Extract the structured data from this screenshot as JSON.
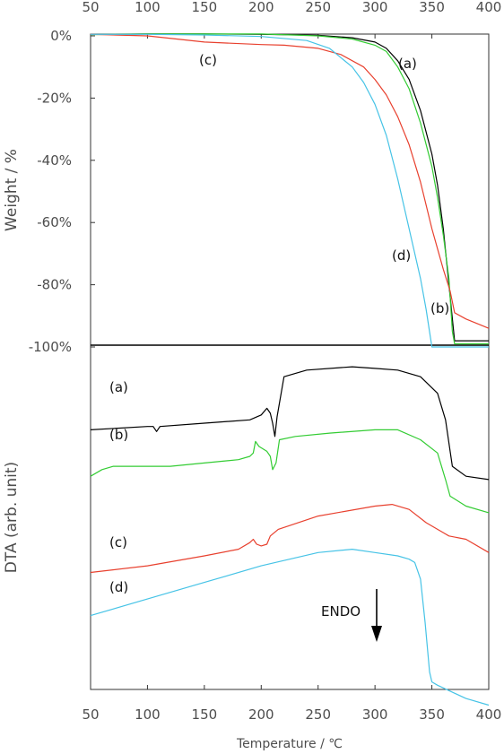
{
  "chart_data": [
    {
      "type": "line",
      "ylabel": "Weight / %",
      "x_ticks": [
        "50",
        "100",
        "150",
        "200",
        "250",
        "300",
        "350",
        "400"
      ],
      "y_ticks": [
        "0%",
        "-20%",
        "-40%",
        "-60%",
        "-80%",
        "-100%"
      ],
      "xlim": [
        50,
        400
      ],
      "ylim": [
        -100,
        2
      ],
      "series": [
        {
          "name": "(a)",
          "color": "#000000",
          "points": [
            [
              50,
              0.5
            ],
            [
              100,
              0.6
            ],
            [
              150,
              0.6
            ],
            [
              200,
              0.5
            ],
            [
              250,
              0.2
            ],
            [
              280,
              -0.6
            ],
            [
              300,
              -2
            ],
            [
              310,
              -4
            ],
            [
              320,
              -8
            ],
            [
              330,
              -14
            ],
            [
              340,
              -24
            ],
            [
              350,
              -38
            ],
            [
              355,
              -48
            ],
            [
              360,
              -62
            ],
            [
              365,
              -80
            ],
            [
              370,
              -98
            ],
            [
              400,
              -98
            ]
          ]
        },
        {
          "name": "(b)",
          "color": "#33cc33",
          "points": [
            [
              50,
              0.4
            ],
            [
              100,
              0.6
            ],
            [
              150,
              0.6
            ],
            [
              200,
              0.6
            ],
            [
              250,
              0
            ],
            [
              280,
              -1
            ],
            [
              300,
              -3
            ],
            [
              310,
              -5
            ],
            [
              320,
              -10
            ],
            [
              330,
              -17
            ],
            [
              340,
              -28
            ],
            [
              350,
              -42
            ],
            [
              355,
              -52
            ],
            [
              360,
              -64
            ],
            [
              365,
              -78
            ],
            [
              368,
              -95
            ],
            [
              370,
              -99
            ],
            [
              400,
              -99
            ]
          ]
        },
        {
          "name": "(c)",
          "color": "#e8402e",
          "points": [
            [
              50,
              0.5
            ],
            [
              100,
              0
            ],
            [
              150,
              -2
            ],
            [
              200,
              -2.8
            ],
            [
              220,
              -3
            ],
            [
              250,
              -4
            ],
            [
              270,
              -6
            ],
            [
              290,
              -10
            ],
            [
              300,
              -14
            ],
            [
              310,
              -19
            ],
            [
              320,
              -26
            ],
            [
              330,
              -35
            ],
            [
              340,
              -47
            ],
            [
              350,
              -62
            ],
            [
              360,
              -75
            ],
            [
              366,
              -82
            ],
            [
              370,
              -89
            ],
            [
              380,
              -91
            ],
            [
              400,
              -94
            ]
          ]
        },
        {
          "name": "(d)",
          "color": "#46c3e6",
          "points": [
            [
              50,
              0.5
            ],
            [
              100,
              0.5
            ],
            [
              150,
              0.3
            ],
            [
              200,
              -0.2
            ],
            [
              240,
              -1.5
            ],
            [
              260,
              -4
            ],
            [
              280,
              -10
            ],
            [
              290,
              -15
            ],
            [
              300,
              -22
            ],
            [
              310,
              -32
            ],
            [
              320,
              -46
            ],
            [
              330,
              -62
            ],
            [
              340,
              -78
            ],
            [
              345,
              -88
            ],
            [
              350,
              -100
            ],
            [
              400,
              -100
            ]
          ]
        }
      ],
      "annotations": [
        "(a)",
        "(c)",
        "(d)",
        "(b)"
      ]
    },
    {
      "type": "line",
      "xlabel": "Temperature / ℃",
      "ylabel": "DTA (arb. unit)",
      "x_ticks": [
        "50",
        "100",
        "150",
        "200",
        "250",
        "300",
        "350",
        "400"
      ],
      "xlim": [
        50,
        400
      ],
      "ylim": [
        0,
        1
      ],
      "series": [
        {
          "name": "(a)",
          "color": "#000000",
          "points": [
            [
              50,
              0.78
            ],
            [
              100,
              0.79
            ],
            [
              105,
              0.79
            ],
            [
              108,
              0.775
            ],
            [
              111,
              0.79
            ],
            [
              150,
              0.8
            ],
            [
              190,
              0.81
            ],
            [
              200,
              0.825
            ],
            [
              205,
              0.845
            ],
            [
              208,
              0.83
            ],
            [
              210,
              0.8
            ],
            [
              212,
              0.76
            ],
            [
              214,
              0.82
            ],
            [
              220,
              0.94
            ],
            [
              240,
              0.96
            ],
            [
              280,
              0.97
            ],
            [
              300,
              0.965
            ],
            [
              320,
              0.96
            ],
            [
              340,
              0.94
            ],
            [
              355,
              0.89
            ],
            [
              362,
              0.81
            ],
            [
              368,
              0.67
            ],
            [
              380,
              0.64
            ],
            [
              400,
              0.63
            ]
          ]
        },
        {
          "name": "(b)",
          "color": "#33cc33",
          "points": [
            [
              50,
              0.64
            ],
            [
              60,
              0.66
            ],
            [
              70,
              0.67
            ],
            [
              80,
              0.67
            ],
            [
              120,
              0.67
            ],
            [
              150,
              0.68
            ],
            [
              180,
              0.69
            ],
            [
              190,
              0.7
            ],
            [
              193,
              0.71
            ],
            [
              195,
              0.745
            ],
            [
              198,
              0.73
            ],
            [
              205,
              0.715
            ],
            [
              208,
              0.7
            ],
            [
              210,
              0.66
            ],
            [
              213,
              0.68
            ],
            [
              216,
              0.75
            ],
            [
              230,
              0.76
            ],
            [
              260,
              0.77
            ],
            [
              300,
              0.78
            ],
            [
              320,
              0.78
            ],
            [
              340,
              0.75
            ],
            [
              355,
              0.71
            ],
            [
              362,
              0.63
            ],
            [
              366,
              0.58
            ],
            [
              380,
              0.55
            ],
            [
              400,
              0.53
            ]
          ]
        },
        {
          "name": "(c)",
          "color": "#e8402e",
          "points": [
            [
              50,
              0.35
            ],
            [
              100,
              0.37
            ],
            [
              150,
              0.4
            ],
            [
              180,
              0.42
            ],
            [
              190,
              0.44
            ],
            [
              193,
              0.45
            ],
            [
              196,
              0.435
            ],
            [
              200,
              0.43
            ],
            [
              205,
              0.435
            ],
            [
              208,
              0.46
            ],
            [
              215,
              0.48
            ],
            [
              250,
              0.52
            ],
            [
              300,
              0.55
            ],
            [
              315,
              0.555
            ],
            [
              330,
              0.54
            ],
            [
              345,
              0.5
            ],
            [
              360,
              0.47
            ],
            [
              365,
              0.46
            ],
            [
              380,
              0.45
            ],
            [
              400,
              0.41
            ]
          ]
        },
        {
          "name": "(d)",
          "color": "#46c3e6",
          "points": [
            [
              50,
              0.22
            ],
            [
              100,
              0.27
            ],
            [
              150,
              0.32
            ],
            [
              200,
              0.37
            ],
            [
              250,
              0.41
            ],
            [
              280,
              0.42
            ],
            [
              300,
              0.41
            ],
            [
              320,
              0.4
            ],
            [
              330,
              0.39
            ],
            [
              335,
              0.38
            ],
            [
              340,
              0.33
            ],
            [
              344,
              0.2
            ],
            [
              348,
              0.05
            ],
            [
              350,
              0.02
            ],
            [
              355,
              0.01
            ],
            [
              380,
              -0.03
            ],
            [
              400,
              -0.05
            ]
          ]
        }
      ],
      "annotations": [
        "(a)",
        "(b)",
        "(c)",
        "(d)",
        "ENDO"
      ]
    }
  ]
}
